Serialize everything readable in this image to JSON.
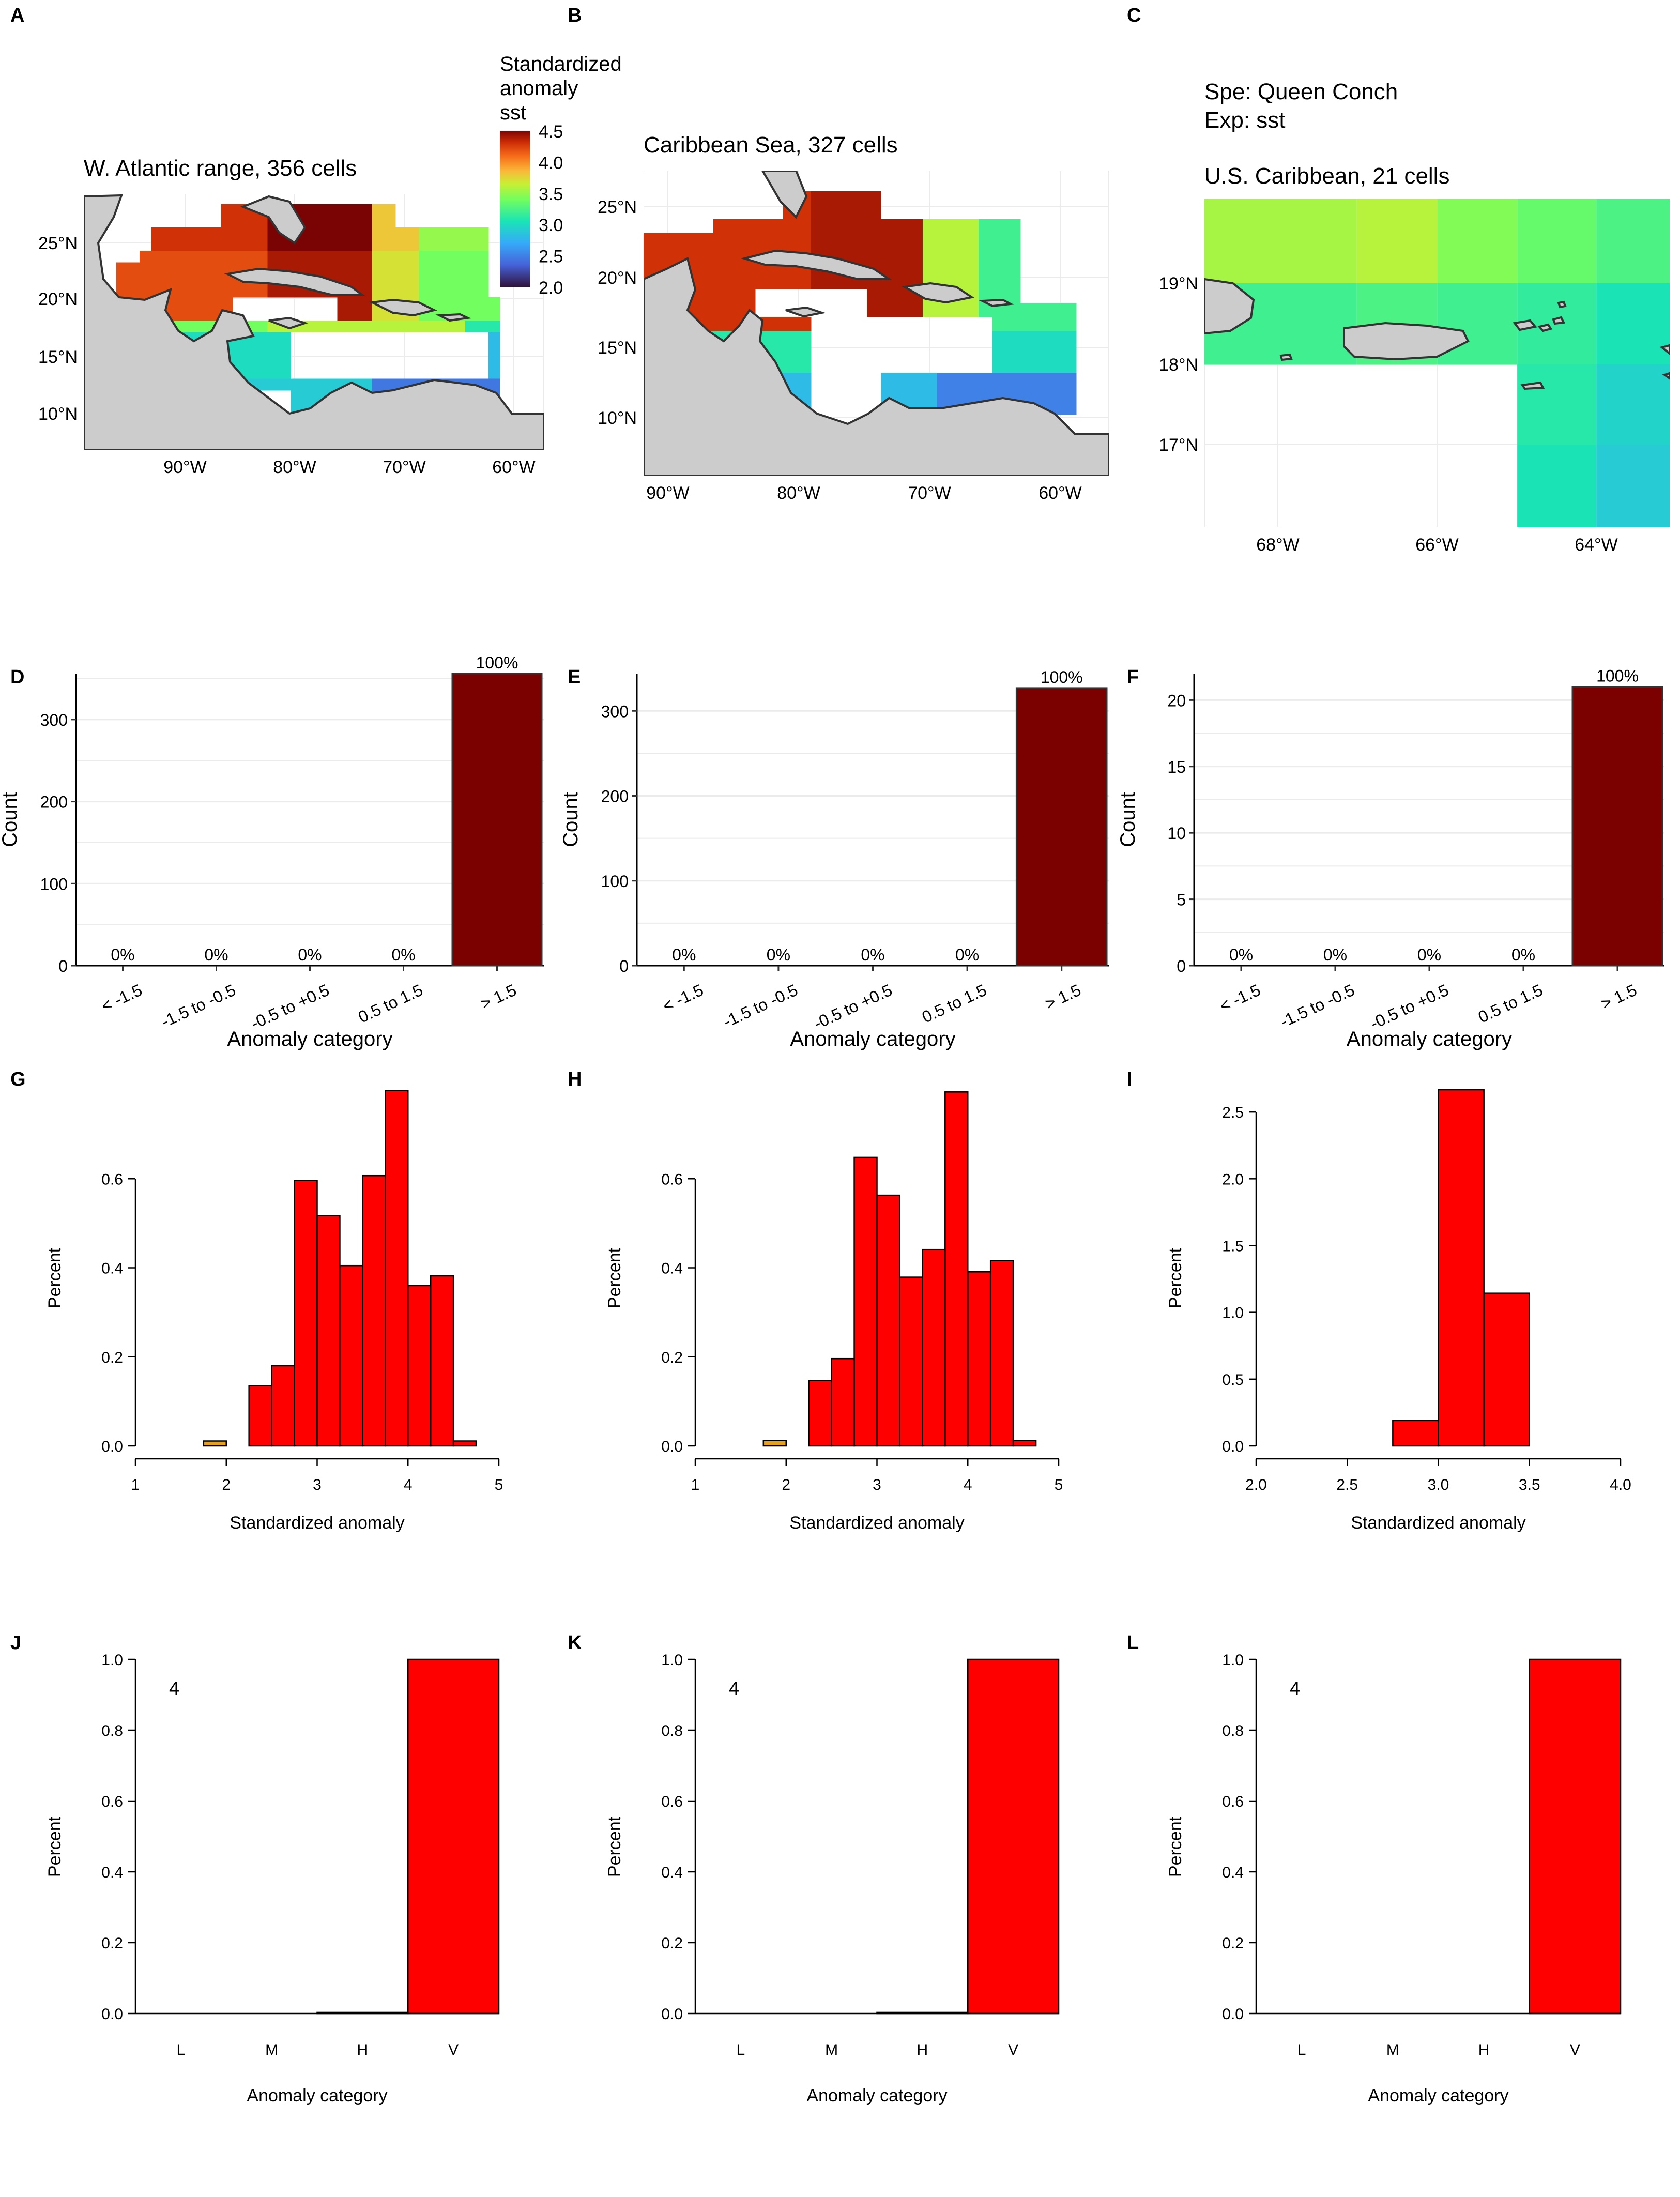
{
  "panel_letters": [
    "A",
    "B",
    "C",
    "D",
    "E",
    "F",
    "G",
    "H",
    "I",
    "J",
    "K",
    "L"
  ],
  "colors": {
    "dark_red_bar": "#7b0000",
    "red_bar": "#ff0000",
    "orange_bar": "#e5a020",
    "land": "#cccccc",
    "grid": "#ebebeb"
  },
  "maps": {
    "A": {
      "title": "W. Atlantic range, 356 cells",
      "x_ticks": [
        "90°W",
        "80°W",
        "70°W",
        "60°W"
      ],
      "y_ticks": [
        "25°N",
        "20°N",
        "15°N",
        "10°N"
      ]
    },
    "B": {
      "title": "Caribbean Sea, 327 cells",
      "x_ticks": [
        "90°W",
        "80°W",
        "70°W",
        "60°W"
      ],
      "y_ticks": [
        "25°N",
        "20°N",
        "15°N",
        "10°N"
      ]
    },
    "C": {
      "species": "Spe: Queen Conch",
      "exposure": "Exp: sst",
      "title": "U.S. Caribbean, 21 cells",
      "x_ticks": [
        "68°W",
        "66°W",
        "64°W"
      ],
      "y_ticks": [
        "19°N",
        "18°N",
        "17°N"
      ]
    },
    "legend": {
      "title_lines": [
        "Standardized",
        "anomaly",
        "sst"
      ],
      "ticks": [
        "4.5",
        "4.0",
        "3.5",
        "3.0",
        "2.5",
        "2.0"
      ],
      "min": 2.0,
      "max": 4.5
    }
  },
  "chart_data": [
    {
      "panel": "D",
      "type": "bar",
      "categories": [
        "< -1.5",
        "-1.5 to -0.5",
        "-0.5 to +0.5",
        "0.5 to 1.5",
        "> 1.5"
      ],
      "values": [
        0,
        0,
        0,
        0,
        356
      ],
      "labels": [
        "0%",
        "0%",
        "0%",
        "0%",
        "100%"
      ],
      "xlabel": "Anomaly category",
      "ylabel": "Count",
      "ylim": [
        0,
        356
      ],
      "yticks": [
        "0",
        "100",
        "200",
        "300"
      ],
      "grid": true
    },
    {
      "panel": "E",
      "type": "bar",
      "categories": [
        "< -1.5",
        "-1.5 to -0.5",
        "-0.5 to +0.5",
        "0.5 to 1.5",
        "> 1.5"
      ],
      "values": [
        0,
        0,
        0,
        0,
        327
      ],
      "labels": [
        "0%",
        "0%",
        "0%",
        "0%",
        "100%"
      ],
      "xlabel": "Anomaly category",
      "ylabel": "Count",
      "ylim": [
        0,
        344
      ],
      "yticks": [
        "0",
        "100",
        "200",
        "300"
      ],
      "grid": true
    },
    {
      "panel": "F",
      "type": "bar",
      "categories": [
        "< -1.5",
        "-1.5 to -0.5",
        "-0.5 to +0.5",
        "0.5 to 1.5",
        "> 1.5"
      ],
      "values": [
        0,
        0,
        0,
        0,
        21
      ],
      "labels": [
        "0%",
        "0%",
        "0%",
        "0%",
        "100%"
      ],
      "xlabel": "Anomaly category",
      "ylabel": "Count",
      "ylim": [
        0,
        22
      ],
      "yticks": [
        "0",
        "5",
        "10",
        "15",
        "20"
      ],
      "grid": true
    },
    {
      "panel": "G",
      "type": "histogram",
      "bins": [
        [
          1.75,
          2.0
        ],
        [
          2.25,
          2.5
        ],
        [
          2.5,
          2.75
        ],
        [
          2.75,
          3.0
        ],
        [
          3.0,
          3.25
        ],
        [
          3.25,
          3.5
        ],
        [
          3.5,
          3.75
        ],
        [
          3.75,
          4.0
        ],
        [
          4.0,
          4.25
        ],
        [
          4.25,
          4.5
        ],
        [
          4.5,
          4.75
        ]
      ],
      "values": [
        0.011,
        0.135,
        0.18,
        0.596,
        0.517,
        0.405,
        0.607,
        0.798,
        0.36,
        0.382,
        0.011
      ],
      "bar_colors": [
        "#e5a020",
        "#ff0000",
        "#ff0000",
        "#ff0000",
        "#ff0000",
        "#ff0000",
        "#ff0000",
        "#ff0000",
        "#ff0000",
        "#ff0000",
        "#ff0000"
      ],
      "xlabel": "Standardized anomaly",
      "ylabel": "Percent",
      "xlim": [
        1,
        5
      ],
      "ylim": [
        0,
        0.8
      ],
      "xticks": [
        "1",
        "2",
        "3",
        "4",
        "5"
      ],
      "yticks": [
        "0.0",
        "0.2",
        "0.4",
        "0.6"
      ]
    },
    {
      "panel": "H",
      "type": "histogram",
      "bins": [
        [
          1.75,
          2.0
        ],
        [
          2.25,
          2.5
        ],
        [
          2.5,
          2.75
        ],
        [
          2.75,
          3.0
        ],
        [
          3.0,
          3.25
        ],
        [
          3.25,
          3.5
        ],
        [
          3.5,
          3.75
        ],
        [
          3.75,
          4.0
        ],
        [
          4.0,
          4.25
        ],
        [
          4.25,
          4.5
        ],
        [
          4.5,
          4.75
        ]
      ],
      "values": [
        0.012,
        0.147,
        0.196,
        0.648,
        0.563,
        0.379,
        0.441,
        0.795,
        0.391,
        0.416,
        0.012
      ],
      "bar_colors": [
        "#e5a020",
        "#ff0000",
        "#ff0000",
        "#ff0000",
        "#ff0000",
        "#ff0000",
        "#ff0000",
        "#ff0000",
        "#ff0000",
        "#ff0000",
        "#ff0000"
      ],
      "xlabel": "Standardized anomaly",
      "ylabel": "Percent",
      "xlim": [
        1,
        5
      ],
      "ylim": [
        0,
        0.8
      ],
      "xticks": [
        "1",
        "2",
        "3",
        "4",
        "5"
      ],
      "yticks": [
        "0.0",
        "0.2",
        "0.4",
        "0.6"
      ]
    },
    {
      "panel": "I",
      "type": "histogram",
      "bins": [
        [
          2.75,
          3.0
        ],
        [
          3.0,
          3.25
        ],
        [
          3.25,
          3.5
        ]
      ],
      "values": [
        0.19,
        2.667,
        1.143
      ],
      "bar_colors": [
        "#ff0000",
        "#ff0000",
        "#ff0000"
      ],
      "xlabel": "Standardized anomaly",
      "ylabel": "Percent",
      "xlim": [
        2.0,
        4.0
      ],
      "ylim": [
        0,
        2.667
      ],
      "xticks": [
        "2.0",
        "2.5",
        "3.0",
        "3.5",
        "4.0"
      ],
      "yticks": [
        "0.0",
        "0.5",
        "1.0",
        "1.5",
        "2.0",
        "2.5"
      ]
    },
    {
      "panel": "J",
      "type": "bar",
      "categories": [
        "L",
        "M",
        "H",
        "V"
      ],
      "values": [
        0,
        0,
        0.003,
        1.0
      ],
      "annotation": "4",
      "xlabel": "Anomaly category",
      "ylabel": "Percent",
      "ylim": [
        0,
        1.0
      ],
      "yticks": [
        "0.0",
        "0.2",
        "0.4",
        "0.6",
        "0.8",
        "1.0"
      ]
    },
    {
      "panel": "K",
      "type": "bar",
      "categories": [
        "L",
        "M",
        "H",
        "V"
      ],
      "values": [
        0,
        0,
        0.003,
        1.0
      ],
      "annotation": "4",
      "xlabel": "Anomaly category",
      "ylabel": "Percent",
      "ylim": [
        0,
        1.0
      ],
      "yticks": [
        "0.0",
        "0.2",
        "0.4",
        "0.6",
        "0.8",
        "1.0"
      ]
    },
    {
      "panel": "L",
      "type": "bar",
      "categories": [
        "L",
        "M",
        "H",
        "V"
      ],
      "values": [
        0,
        0,
        0,
        1.0
      ],
      "annotation": "4",
      "xlabel": "Anomaly category",
      "ylabel": "Percent",
      "ylim": [
        0,
        1.0
      ],
      "yticks": [
        "0.0",
        "0.2",
        "0.4",
        "0.6",
        "0.8",
        "1.0"
      ]
    }
  ]
}
